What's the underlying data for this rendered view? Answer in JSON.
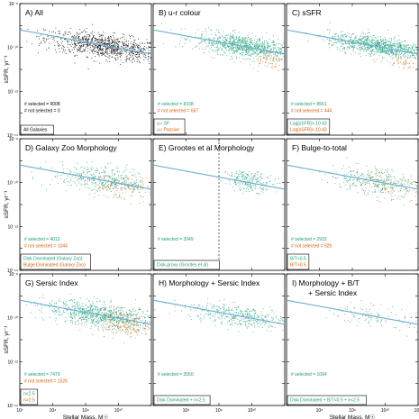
{
  "figure": {
    "y_axis_label": "sSFR, yr⁻¹",
    "x_axis_label": "Stellar Mass, M☉"
  },
  "chart_data": [
    {
      "type": "scatter",
      "id": "A",
      "title": "A) All",
      "xlabel": "",
      "ylabel": "sSFR, yr⁻¹",
      "xscale": "log",
      "yscale": "log",
      "xlim": [
        10000000.0,
        100000000000.0
      ],
      "ylim": [
        1e-14,
        1e-08
      ],
      "series": [
        {
          "label": "# selected = 9008",
          "color": "#000000",
          "center_log_mass": 9.6,
          "center_log_ssfr": -9.95,
          "spread_log_mass": 0.9,
          "spread_log_ssfr": 0.28
        }
      ],
      "reference_line": {
        "color": "#6baed6",
        "x": [
          10000000.0,
          100000000000.0
        ],
        "y": [
          6.3e-10,
          5e-11
        ]
      },
      "annotations": [
        "# selected = 9008",
        "# not selected = 0"
      ],
      "legend": [
        "All Galaxies"
      ]
    },
    {
      "type": "scatter",
      "id": "B",
      "title": "B) u-r colour",
      "xlabel": "",
      "ylabel": "",
      "xscale": "log",
      "yscale": "log",
      "xlim": [
        10000000.0,
        100000000000.0
      ],
      "ylim": [
        1e-14,
        1e-08
      ],
      "series": [
        {
          "label": "# selected = 8338",
          "color": "#1b9e77",
          "center_log_mass": 9.8,
          "center_log_ssfr": -9.95,
          "spread_log_mass": 0.75,
          "spread_log_ssfr": 0.25
        },
        {
          "label": "# not selected = 667",
          "color": "#d95f02",
          "center_log_mass": 10.5,
          "center_log_ssfr": -10.55,
          "spread_log_mass": 0.3,
          "spread_log_ssfr": 0.2
        }
      ],
      "reference_line": {
        "color": "#6baed6",
        "x": [
          10000000.0,
          100000000000.0
        ],
        "y": [
          6.3e-10,
          5e-11
        ]
      },
      "annotations": [
        "# selected = 8338",
        "# not selected = 667"
      ],
      "legend": [
        "u-r SF",
        "u-r Passive"
      ]
    },
    {
      "type": "scatter",
      "id": "C",
      "title": "C) sSFR",
      "xlabel": "",
      "ylabel": "",
      "xscale": "log",
      "yscale": "log",
      "xlim": [
        10000000.0,
        100000000000.0
      ],
      "ylim": [
        1e-14,
        1e-08
      ],
      "series": [
        {
          "label": "# selected = 8561",
          "color": "#1b9e77",
          "center_log_mass": 9.8,
          "center_log_ssfr": -9.95,
          "spread_log_mass": 0.75,
          "spread_log_ssfr": 0.22
        },
        {
          "label": "# not selected = 444",
          "color": "#d95f02",
          "center_log_mass": 10.5,
          "center_log_ssfr": -10.65,
          "spread_log_mass": 0.3,
          "spread_log_ssfr": 0.15
        }
      ],
      "reference_line": {
        "color": "#6baed6",
        "x": [
          10000000.0,
          100000000000.0
        ],
        "y": [
          6.3e-10,
          5e-11
        ]
      },
      "annotations": [
        "# selected = 8561",
        "# not selected = 444"
      ],
      "legend": [
        "Log[sSFR]>-10.43",
        "Log[sSFR]<-10.43"
      ]
    },
    {
      "type": "scatter",
      "id": "D",
      "title": "D) Galaxy Zoo Morphology",
      "xlabel": "",
      "ylabel": "sSFR, yr⁻¹",
      "xscale": "log",
      "yscale": "log",
      "xlim": [
        10000000.0,
        100000000000.0
      ],
      "ylim": [
        1e-14,
        1e-08
      ],
      "series": [
        {
          "label": "# selected = 4012",
          "color": "#1b9e77",
          "center_log_mass": 9.6,
          "center_log_ssfr": -9.9,
          "spread_log_mass": 0.8,
          "spread_log_ssfr": 0.3
        },
        {
          "label": "# not selected = 1044",
          "color": "#d95f02",
          "center_log_mass": 10.1,
          "center_log_ssfr": -10.2,
          "spread_log_mass": 0.5,
          "spread_log_ssfr": 0.3
        }
      ],
      "reference_line": {
        "color": "#6baed6",
        "x": [
          10000000.0,
          100000000000.0
        ],
        "y": [
          6.3e-10,
          5e-11
        ]
      },
      "annotations": [
        "# selected = 4012",
        "# not selected = 1044"
      ],
      "legend": [
        "Disk Dominated (Galaxy Zoo)",
        "Bulge Dominated (Galaxy Zoo)"
      ]
    },
    {
      "type": "scatter",
      "id": "E",
      "title": "E) Grootes et al Morphology",
      "xlabel": "",
      "ylabel": "",
      "xscale": "log",
      "yscale": "log",
      "xlim": [
        10000000.0,
        100000000000.0
      ],
      "ylim": [
        1e-14,
        1e-08
      ],
      "series": [
        {
          "label": "# selected = 2049",
          "color": "#1b9e77",
          "center_log_mass": 9.95,
          "center_log_ssfr": -9.95,
          "spread_log_mass": 0.35,
          "spread_log_ssfr": 0.22
        }
      ],
      "reference_line": {
        "color": "#6baed6",
        "x": [
          10000000.0,
          100000000000.0
        ],
        "y": [
          6.3e-10,
          5e-11
        ]
      },
      "mass_cut": 1000000000.0,
      "annotations": [
        "# selected = 2049"
      ],
      "legend": [
        "Disk-proxy (Grootes et al)"
      ]
    },
    {
      "type": "scatter",
      "id": "F",
      "title": "F) Bulge-to-total",
      "xlabel": "",
      "ylabel": "",
      "xscale": "log",
      "yscale": "log",
      "xlim": [
        10000000.0,
        100000000000.0
      ],
      "ylim": [
        1e-14,
        1e-08
      ],
      "series": [
        {
          "label": "# selected = 2932",
          "color": "#1b9e77",
          "center_log_mass": 9.7,
          "center_log_ssfr": -9.95,
          "spread_log_mass": 0.7,
          "spread_log_ssfr": 0.3
        },
        {
          "label": "# not selected = 929",
          "color": "#d95f02",
          "center_log_mass": 10.0,
          "center_log_ssfr": -10.15,
          "spread_log_mass": 0.55,
          "spread_log_ssfr": 0.3
        }
      ],
      "reference_line": {
        "color": "#6baed6",
        "x": [
          10000000.0,
          100000000000.0
        ],
        "y": [
          6.3e-10,
          5e-11
        ]
      },
      "annotations": [
        "# selected = 2932",
        "# not selected = 929"
      ],
      "legend": [
        "B/T<0.5",
        "B/T>0.5"
      ]
    },
    {
      "type": "scatter",
      "id": "G",
      "title": "G) Sersic Index",
      "xlabel": "Stellar Mass, M☉",
      "ylabel": "sSFR, yr⁻¹",
      "xscale": "log",
      "yscale": "log",
      "xlim": [
        10000000.0,
        100000000000.0
      ],
      "ylim": [
        1e-14,
        1e-08
      ],
      "series": [
        {
          "label": "# selected = 7479",
          "color": "#1b9e77",
          "center_log_mass": 9.5,
          "center_log_ssfr": -9.9,
          "spread_log_mass": 0.85,
          "spread_log_ssfr": 0.28
        },
        {
          "label": "# not selected = 1526",
          "color": "#d95f02",
          "center_log_mass": 10.3,
          "center_log_ssfr": -10.3,
          "spread_log_mass": 0.4,
          "spread_log_ssfr": 0.3
        }
      ],
      "reference_line": {
        "color": "#6baed6",
        "x": [
          10000000.0,
          100000000000.0
        ],
        "y": [
          6.3e-10,
          5e-11
        ]
      },
      "annotations": [
        "# selected = 7479",
        "# not selected = 1526"
      ],
      "legend": [
        "n<2.5",
        "n>2.5"
      ]
    },
    {
      "type": "scatter",
      "id": "H",
      "title": "H) Morphology + Sersic Index",
      "xlabel": "",
      "ylabel": "",
      "xscale": "log",
      "yscale": "log",
      "xlim": [
        10000000.0,
        100000000000.0
      ],
      "ylim": [
        1e-14,
        1e-08
      ],
      "series": [
        {
          "label": "# selected = 3550",
          "color": "#1b9e77",
          "center_log_mass": 9.55,
          "center_log_ssfr": -9.9,
          "spread_log_mass": 0.8,
          "spread_log_ssfr": 0.25
        }
      ],
      "reference_line": {
        "color": "#6baed6",
        "x": [
          10000000.0,
          100000000000.0
        ],
        "y": [
          6.3e-10,
          5e-11
        ]
      },
      "annotations": [
        "# selected = 3550"
      ],
      "legend": [
        "Disk Dominated + n<2.5"
      ]
    },
    {
      "type": "scatter",
      "id": "I",
      "title": "I) Morphology + B/T",
      "title2": "+ Sersic Index",
      "xlabel": "Stellar Mass, M☉",
      "ylabel": "",
      "xscale": "log",
      "yscale": "log",
      "xlim": [
        10000000.0,
        100000000000.0
      ],
      "ylim": [
        1e-14,
        1e-08
      ],
      "series": [
        {
          "label": "# selected = 1094",
          "color": "#1b9e77",
          "center_log_mass": 9.7,
          "center_log_ssfr": -9.95,
          "spread_log_mass": 0.65,
          "spread_log_ssfr": 0.25
        }
      ],
      "reference_line": {
        "color": "#6baed6",
        "x": [
          10000000.0,
          100000000000.0
        ],
        "y": [
          6.3e-10,
          5e-11
        ]
      },
      "annotations": [
        "# selected = 1094"
      ],
      "legend": [
        "Disk Dominated + B/T<0.5 + n<2.5"
      ]
    }
  ]
}
